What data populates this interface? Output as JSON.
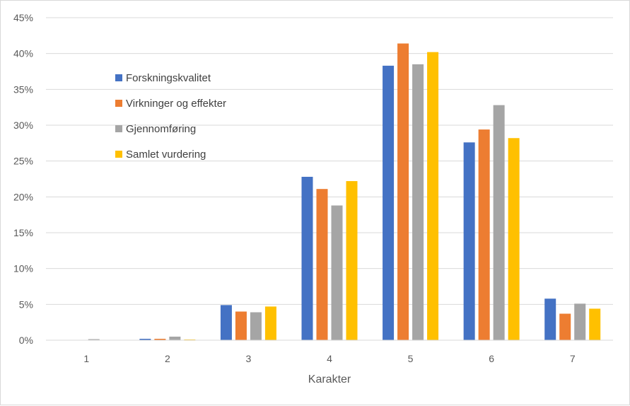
{
  "chart_data": {
    "type": "bar",
    "title": "",
    "xlabel": "Karakter",
    "ylabel": "",
    "categories": [
      "1",
      "2",
      "3",
      "4",
      "5",
      "6",
      "7"
    ],
    "ylim": [
      0,
      45
    ],
    "ytick_values": [
      0,
      5,
      10,
      15,
      20,
      25,
      30,
      35,
      40,
      45
    ],
    "ytick_labels": [
      "0%",
      "5%",
      "10%",
      "15%",
      "20%",
      "25%",
      "30%",
      "35%",
      "40%",
      "45%"
    ],
    "grid": true,
    "legend_position": "upper-left inside plot",
    "series": [
      {
        "name": "Forskningskvalitet",
        "color": "#4472C4",
        "values": [
          0.0,
          0.2,
          4.9,
          22.8,
          38.3,
          27.6,
          5.8
        ]
      },
      {
        "name": "Virkninger og effekter",
        "color": "#ED7D31",
        "values": [
          0.0,
          0.2,
          4.0,
          21.1,
          41.4,
          29.4,
          3.7
        ]
      },
      {
        "name": "Gjennomføring",
        "color": "#A5A5A5",
        "values": [
          0.15,
          0.5,
          3.9,
          18.8,
          38.5,
          32.8,
          5.1
        ]
      },
      {
        "name": "Samlet vurdering",
        "color": "#FFC000",
        "values": [
          0.0,
          0.1,
          4.7,
          22.2,
          40.2,
          28.2,
          4.4
        ]
      }
    ]
  }
}
